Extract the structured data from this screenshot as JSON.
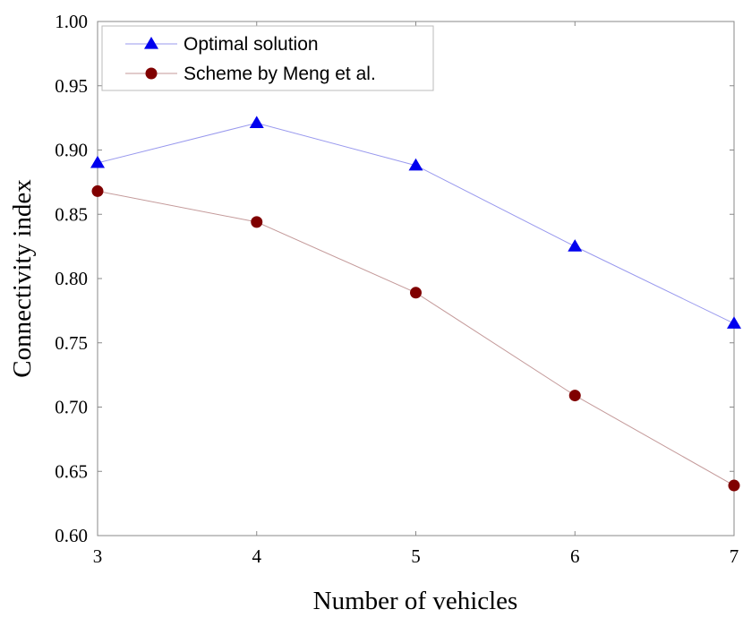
{
  "chart_data": {
    "type": "line",
    "title": "",
    "xlabel": "Number of vehicles",
    "ylabel": "Connectivity index",
    "x": [
      3,
      4,
      5,
      6,
      7
    ],
    "xlim": [
      3,
      7
    ],
    "ylim": [
      0.6,
      1.0
    ],
    "x_ticks": [
      "3",
      "4",
      "5",
      "6",
      "7"
    ],
    "y_ticks": [
      "0.60",
      "0.65",
      "0.70",
      "0.75",
      "0.80",
      "0.85",
      "0.90",
      "0.95",
      "1.00"
    ],
    "grid": false,
    "legend_position": "top-left",
    "series": [
      {
        "name": "Optimal solution",
        "values": [
          0.89,
          0.921,
          0.888,
          0.825,
          0.765
        ],
        "color": "#0000ee",
        "line_color": "#9999ee",
        "marker": "triangle"
      },
      {
        "name": "Scheme by Meng et al.",
        "values": [
          0.868,
          0.844,
          0.789,
          0.709,
          0.639
        ],
        "color": "#800000",
        "line_color": "#c49a9a",
        "marker": "circle"
      }
    ]
  }
}
